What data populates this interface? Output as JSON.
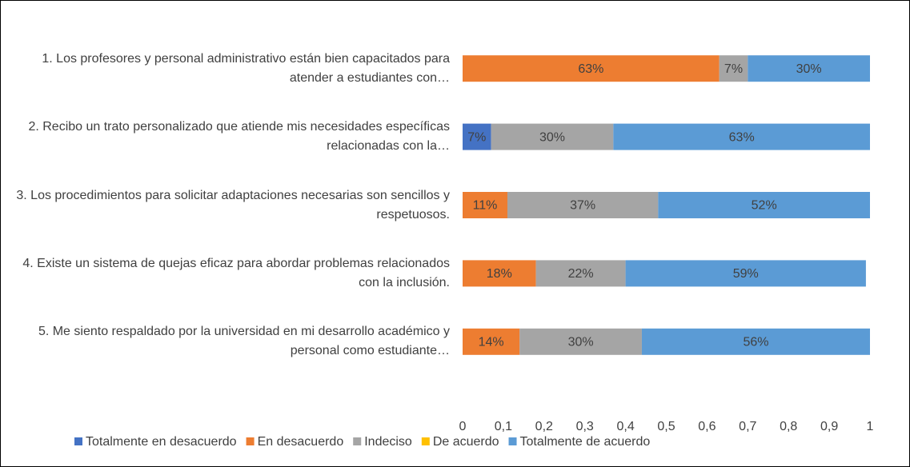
{
  "chart_data": {
    "type": "stacked-barh",
    "categories": [
      "1. Los profesores y personal administrativo están bien capacitados para atender a estudiantes con…",
      "2. Recibo un trato personalizado que atiende mis necesidades específicas relacionadas con la…",
      "3. Los procedimientos para solicitar adaptaciones necesarias son sencillos y respetuosos.",
      "4. Existe un sistema de quejas eficaz para abordar problemas relacionados con la inclusión.",
      "5. Me siento respaldado por la universidad en mi desarrollo académico y personal como estudiante…"
    ],
    "series": [
      {
        "name": "Totalmente en desacuerdo",
        "color": "#4472c4",
        "values": [
          null,
          0.07,
          null,
          null,
          null
        ],
        "value_labels": [
          null,
          "7%",
          null,
          null,
          null
        ]
      },
      {
        "name": "En desacuerdo",
        "color": "#ed7d31",
        "values": [
          0.63,
          null,
          0.11,
          0.18,
          0.14
        ],
        "value_labels": [
          "63%",
          null,
          "11%",
          "18%",
          "14%"
        ]
      },
      {
        "name": "Indeciso",
        "color": "#a5a5a5",
        "values": [
          0.07,
          0.3,
          0.37,
          0.22,
          0.3
        ],
        "value_labels": [
          "7%",
          "30%",
          "37%",
          "22%",
          "30%"
        ]
      },
      {
        "name": "De acuerdo",
        "color": "#ffc000",
        "values": [
          null,
          null,
          null,
          null,
          null
        ],
        "value_labels": [
          null,
          null,
          null,
          null,
          null
        ]
      },
      {
        "name": "Totalmente de acuerdo",
        "color": "#5b9bd5",
        "values": [
          0.3,
          0.63,
          0.52,
          0.59,
          0.56
        ],
        "value_labels": [
          "30%",
          "63%",
          "52%",
          "59%",
          "56%"
        ]
      }
    ],
    "xlim": [
      0,
      1
    ],
    "xticks": [
      0,
      {
        "value": 0.1,
        "label": "0,1"
      },
      {
        "value": 0.2,
        "label": "0,2"
      },
      {
        "value": 0.3,
        "label": "0,3"
      },
      {
        "value": 0.4,
        "label": "0,4"
      },
      {
        "value": 0.5,
        "label": "0,5"
      },
      {
        "value": 0.6,
        "label": "0,6"
      },
      {
        "value": 0.7,
        "label": "0,7"
      },
      {
        "value": 0.8,
        "label": "0,8"
      },
      {
        "value": 0.9,
        "label": "0,9"
      },
      1
    ],
    "legend": "bottom"
  }
}
